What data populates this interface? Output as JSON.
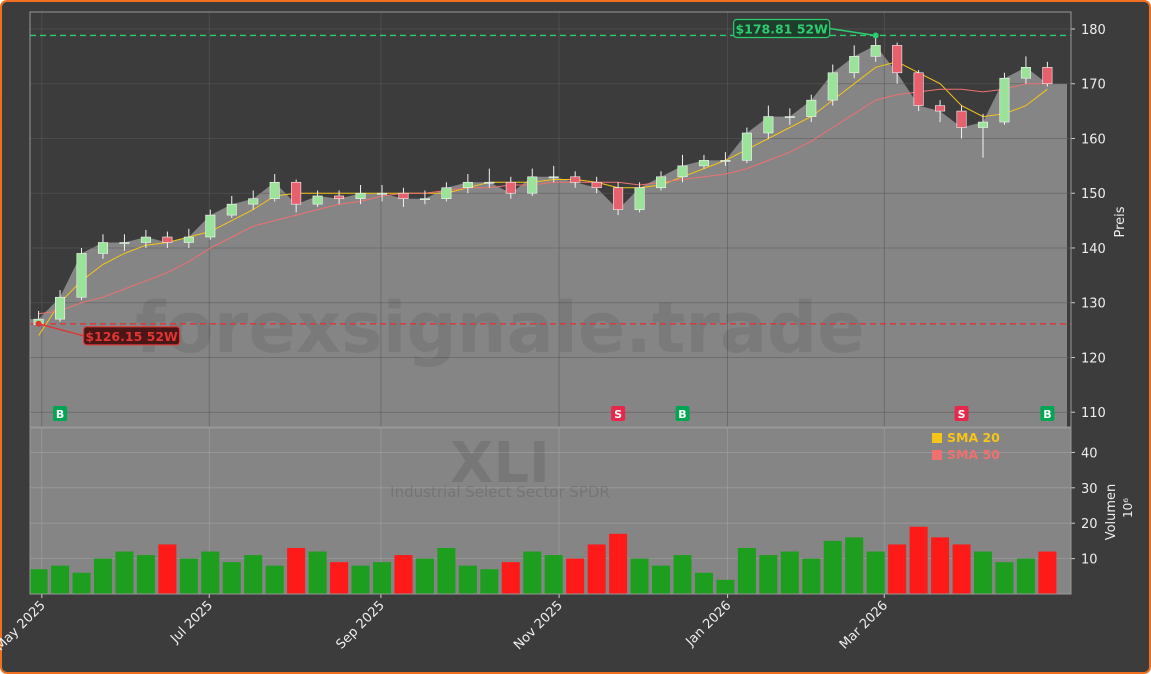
{
  "chart_data": {
    "type": "candlestick",
    "watermark": "forexsignale.trade",
    "symbol": "XLI",
    "subtitle": "Industrial Select Sector SPDR",
    "ylabel": "Preis",
    "categories": [
      null,
      null,
      null,
      null,
      null,
      null,
      null,
      null,
      null,
      null,
      null,
      null,
      null,
      null,
      null,
      null,
      null,
      null,
      null,
      null,
      null,
      null,
      null,
      null,
      null,
      null,
      null,
      null,
      null,
      null,
      null,
      null,
      null,
      null,
      null,
      null,
      null,
      null,
      null,
      null,
      null,
      null,
      null,
      null,
      null,
      null,
      null,
      null
    ],
    "xlim": [
      -0.4,
      48.1
    ],
    "xticks": [
      {
        "value": 0.15,
        "label": "May 2025"
      },
      {
        "value": 7.95,
        "label": "Jul 2025"
      },
      {
        "value": 15.95,
        "label": "Sep 2025"
      },
      {
        "value": 24.25,
        "label": "Nov 2025"
      },
      {
        "value": 32.1,
        "label": "Jan 2026"
      },
      {
        "value": 39.4,
        "label": "Mar 2026"
      }
    ],
    "ylim": [
      107.3,
      183.1
    ],
    "yticks": [
      110,
      120,
      130,
      140,
      150,
      160,
      170,
      180
    ],
    "grid": true,
    "up_color": "#9be39b",
    "down_color": "#e8606e",
    "area_color": "#858585",
    "candles": {
      "open": [
        126,
        127,
        131,
        139,
        141,
        141,
        142,
        141,
        142,
        146,
        148,
        149,
        152,
        148,
        149.5,
        149,
        150,
        150,
        149,
        149,
        151,
        152,
        152,
        150,
        153,
        153,
        152,
        151,
        147,
        151,
        153,
        155,
        156,
        156,
        161,
        164,
        164,
        167,
        172,
        175,
        177,
        172,
        166,
        165,
        162,
        163,
        171,
        173
      ],
      "high": [
        128.5,
        132.3,
        140,
        142.5,
        142.5,
        143.3,
        143,
        143.5,
        147,
        149.5,
        150.5,
        153.5,
        152.5,
        150.5,
        150.5,
        151.5,
        151.5,
        151,
        150.5,
        152,
        153.5,
        154.5,
        153,
        154.5,
        155,
        154,
        153,
        152,
        152,
        154,
        157,
        157,
        157.5,
        162,
        166,
        165.5,
        168,
        173.5,
        177,
        178.81,
        177.5,
        172.5,
        167,
        166,
        164.5,
        172,
        175,
        174
      ],
      "low": [
        126.15,
        126.5,
        130.5,
        138,
        139.5,
        140,
        140,
        140,
        141.5,
        145.5,
        147,
        148.5,
        146.5,
        147.5,
        148,
        148,
        148.5,
        147.5,
        148,
        148.5,
        150,
        151,
        149,
        149.5,
        152,
        151,
        150,
        146,
        146.5,
        150.5,
        152,
        154.5,
        155,
        155.5,
        160,
        162.5,
        163,
        166,
        171,
        174,
        170,
        165,
        163,
        160,
        156.5,
        162.5,
        170,
        169.5
      ],
      "close": [
        127,
        131,
        139,
        141,
        141,
        142,
        141,
        142,
        146,
        148,
        149,
        152,
        148,
        149.5,
        149,
        150,
        150,
        149,
        149,
        151,
        152,
        152,
        150,
        153,
        153,
        152,
        151,
        147,
        151,
        153,
        155,
        156,
        156,
        161,
        164,
        164,
        167,
        172,
        175,
        177,
        172,
        166,
        165,
        162,
        163,
        171,
        173,
        170
      ]
    },
    "series": [
      {
        "name": "SMA 20",
        "color": "#f5c518",
        "values": [
          124,
          130,
          134,
          137,
          139,
          140.5,
          141,
          142,
          143,
          145,
          147,
          149.5,
          150,
          150,
          150,
          150,
          150,
          150,
          150,
          150,
          151,
          152,
          152,
          152,
          152.5,
          152.5,
          152,
          151,
          151,
          151.5,
          153,
          154.5,
          156,
          158,
          160,
          162,
          164,
          167,
          170,
          173,
          174,
          172,
          170,
          166,
          164,
          164.5,
          166,
          169
        ]
      },
      {
        "name": "SMA 50",
        "color": "#f07070",
        "values": [
          128,
          128.5,
          130,
          131,
          132.5,
          134,
          135.5,
          137.5,
          140,
          142,
          144,
          145,
          146,
          147,
          148,
          148.5,
          149.5,
          150,
          150,
          150.5,
          151,
          151,
          151.5,
          151.5,
          152,
          152,
          152,
          152,
          151.5,
          152,
          152.5,
          153,
          153.5,
          154.5,
          156,
          157.5,
          159.5,
          162,
          164.5,
          167,
          168,
          168.5,
          169,
          169,
          168.5,
          169,
          170,
          170
        ]
      }
    ],
    "annotations": [
      {
        "text": "$178.81 52W",
        "value": 178.81,
        "index": 39,
        "color": "#2ecc71"
      },
      {
        "text": "$126.15 52W",
        "value": 126.15,
        "index": 0,
        "color": "#e03535"
      }
    ],
    "signals": [
      {
        "index": 1,
        "label": "B",
        "color": "#00a651"
      },
      {
        "index": 27,
        "label": "S",
        "color": "#e8284a"
      },
      {
        "index": 30,
        "label": "B",
        "color": "#00a651"
      },
      {
        "index": 43,
        "label": "S",
        "color": "#e8284a"
      },
      {
        "index": 47,
        "label": "B",
        "color": "#00a651"
      }
    ],
    "volume": {
      "ylabel": "Volumen",
      "offset_label": "10⁶",
      "ylim": [
        0,
        46.9
      ],
      "yticks": [
        10,
        20,
        30,
        40
      ],
      "up_color": "#1e9e1e",
      "down_color": "#ff1a1a",
      "values": [
        7,
        8,
        6,
        10,
        12,
        11,
        14,
        10,
        12,
        9,
        11,
        8,
        13,
        12,
        9,
        8,
        9,
        11,
        10,
        13,
        8,
        7,
        9,
        12,
        11,
        10,
        14,
        17,
        10,
        8,
        11,
        6,
        4,
        13,
        11,
        12,
        10,
        15,
        16,
        12,
        14,
        19,
        16,
        14,
        12,
        9,
        10,
        12
      ]
    },
    "legend": "upper right"
  }
}
